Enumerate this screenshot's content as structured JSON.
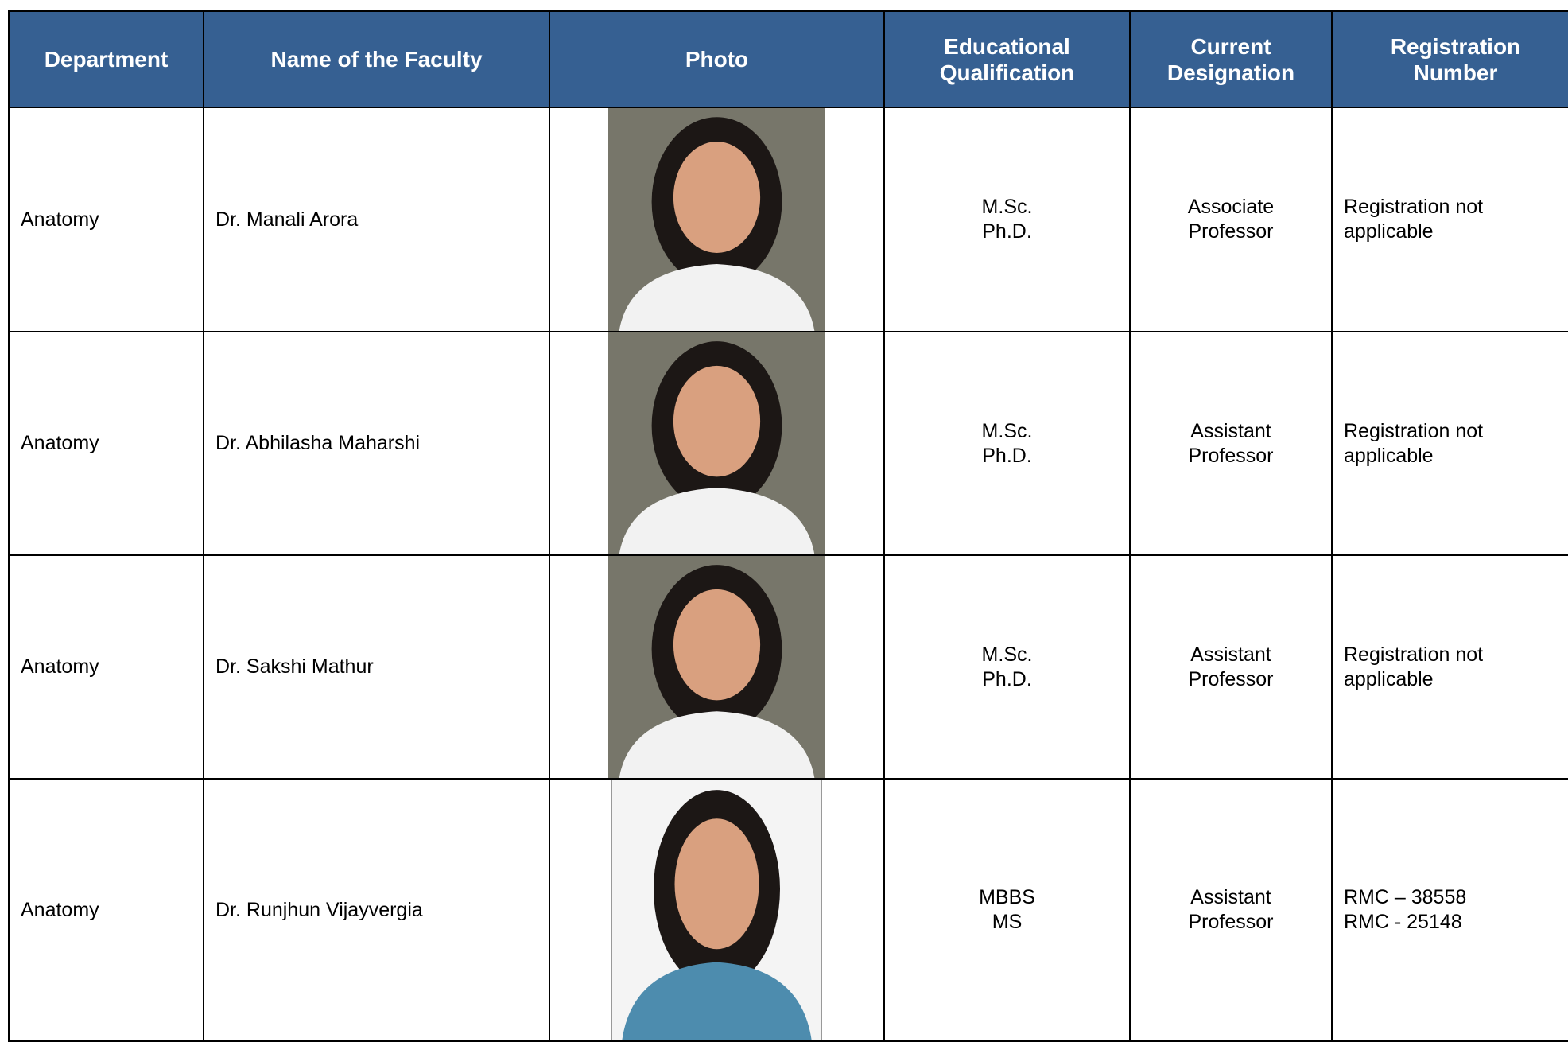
{
  "table": {
    "headers": [
      [
        "Department"
      ],
      [
        "Name of the Faculty"
      ],
      [
        "Photo"
      ],
      [
        "Educational",
        "Qualification"
      ],
      [
        "Current",
        "Designation"
      ],
      [
        "Registration",
        "Number"
      ]
    ],
    "rows": [
      {
        "department": "Anatomy",
        "name": "Dr. Manali Arora",
        "qualification": [
          "M.Sc.",
          "Ph.D."
        ],
        "designation": [
          "Associate",
          "Professor"
        ],
        "registration": [
          "Registration not",
          "applicable"
        ]
      },
      {
        "department": "Anatomy",
        "name": "Dr. Abhilasha Maharshi",
        "qualification": [
          "M.Sc.",
          "Ph.D."
        ],
        "designation": [
          "Assistant",
          "Professor"
        ],
        "registration": [
          "Registration not",
          "applicable"
        ]
      },
      {
        "department": "Anatomy",
        "name": "Dr. Sakshi Mathur",
        "qualification": [
          "M.Sc.",
          "Ph.D."
        ],
        "designation": [
          "Assistant",
          "Professor"
        ],
        "registration": [
          "Registration not",
          "applicable"
        ]
      },
      {
        "department": "Anatomy",
        "name": "Dr. Runjhun Vijayvergia",
        "qualification": [
          "MBBS",
          "MS"
        ],
        "designation": [
          "Assistant",
          "Professor"
        ],
        "registration": [
          "RMC – 38558",
          "RMC - 25148"
        ]
      }
    ]
  }
}
